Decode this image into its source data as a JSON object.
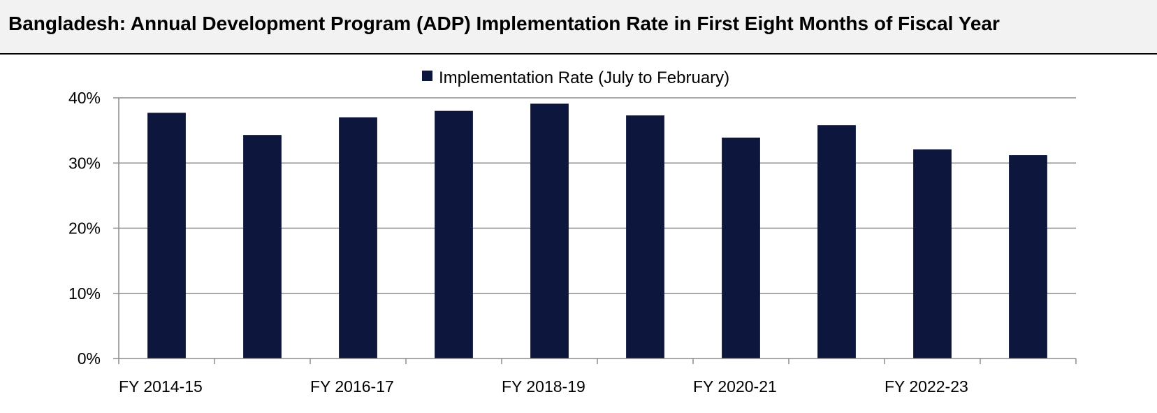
{
  "title": "Bangladesh: Annual Development Program (ADP) Implementation Rate in First Eight Months of Fiscal Year",
  "chart_data": {
    "type": "bar",
    "title": "Bangladesh: Annual Development Program (ADP) Implementation Rate in First Eight Months of Fiscal Year",
    "categories": [
      "FY 2014-15",
      "FY 2015-16",
      "FY 2016-17",
      "FY 2017-18",
      "FY 2018-19",
      "FY 2019-20",
      "FY 2020-21",
      "FY 2021-22",
      "FY 2022-23",
      "FY 2023-24"
    ],
    "category_labels_shown": [
      "FY 2014-15",
      "",
      "FY 2016-17",
      "",
      "FY 2018-19",
      "",
      "FY 2020-21",
      "",
      "FY 2022-23",
      ""
    ],
    "series": [
      {
        "name": "Implementation Rate (July to February)",
        "color": "#0d163c",
        "values": [
          37.7,
          34.3,
          37.0,
          38.0,
          39.1,
          37.3,
          33.9,
          35.8,
          32.1,
          31.2
        ]
      }
    ],
    "y_ticks": [
      0,
      10,
      20,
      30,
      40
    ],
    "y_tick_labels": [
      "0%",
      "10%",
      "20%",
      "30%",
      "40%"
    ],
    "ylim": [
      0,
      40
    ],
    "xlabel": "",
    "ylabel": "",
    "grid": true,
    "legend_position": "top-center"
  }
}
